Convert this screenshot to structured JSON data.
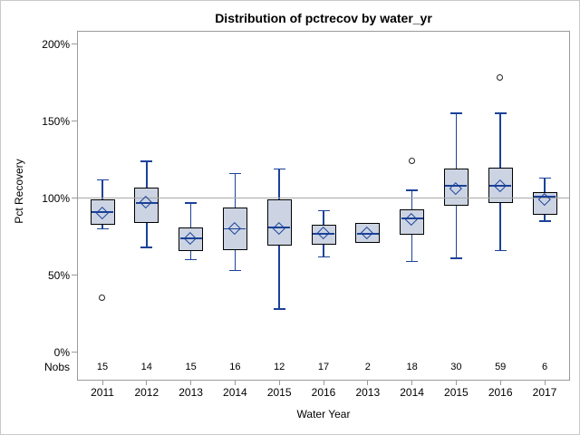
{
  "window": {
    "background": "#ffffff",
    "border_color": "#c9c9c9"
  },
  "chart_data": {
    "type": "boxplot",
    "title": "Distribution of pctrecov by water_yr",
    "xlabel": "Water Year",
    "ylabel": "Pct Recovery",
    "ylim": [
      0,
      200
    ],
    "yticks": [
      0,
      50,
      100,
      150,
      200
    ],
    "ytick_suffix": "%",
    "refline": 100,
    "grid": "refline-only",
    "legend_position": "none",
    "nobs_row_label": "Nobs",
    "boxes": [
      {
        "category": "2011",
        "nobs": 15,
        "whisker_low": 80,
        "q1": 83,
        "median": 91,
        "mean": 90,
        "q3": 99,
        "whisker_high": 112,
        "outliers": [
          35
        ]
      },
      {
        "category": "2012",
        "nobs": 14,
        "whisker_low": 68,
        "q1": 84,
        "median": 97,
        "mean": 97,
        "q3": 107,
        "whisker_high": 124,
        "outliers": []
      },
      {
        "category": "2013",
        "nobs": 15,
        "whisker_low": 60,
        "q1": 66,
        "median": 74,
        "mean": 74,
        "q3": 81,
        "whisker_high": 97,
        "outliers": []
      },
      {
        "category": "2014",
        "nobs": 16,
        "whisker_low": 53,
        "q1": 66,
        "median": 80,
        "mean": 80,
        "q3": 94,
        "whisker_high": 116,
        "outliers": []
      },
      {
        "category": "2015",
        "nobs": 12,
        "whisker_low": 28,
        "q1": 69,
        "median": 81,
        "mean": 80,
        "q3": 99,
        "whisker_high": 119,
        "outliers": []
      },
      {
        "category": "2016",
        "nobs": 17,
        "whisker_low": 62,
        "q1": 70,
        "median": 77,
        "mean": 77,
        "q3": 83,
        "whisker_high": 92,
        "outliers": []
      },
      {
        "category": "2013",
        "nobs": 2,
        "whisker_low": 71,
        "q1": 71,
        "median": 77,
        "mean": 77,
        "q3": 84,
        "whisker_high": 84,
        "outliers": []
      },
      {
        "category": "2014",
        "nobs": 18,
        "whisker_low": 59,
        "q1": 76,
        "median": 87,
        "mean": 86,
        "q3": 93,
        "whisker_high": 105,
        "outliers": [
          124
        ]
      },
      {
        "category": "2015",
        "nobs": 30,
        "whisker_low": 61,
        "q1": 95,
        "median": 108,
        "mean": 106,
        "q3": 119,
        "whisker_high": 155,
        "outliers": []
      },
      {
        "category": "2016",
        "nobs": 59,
        "whisker_low": 66,
        "q1": 97,
        "median": 108,
        "mean": 108,
        "q3": 120,
        "whisker_high": 155,
        "outliers": [
          178
        ]
      },
      {
        "category": "2017",
        "nobs": 6,
        "whisker_low": 85,
        "q1": 89,
        "median": 101,
        "mean": 99,
        "q3": 104,
        "whisker_high": 113,
        "outliers": []
      }
    ],
    "colors": {
      "box_fill": "#ccd4e3",
      "box_border": "#000000",
      "whisker": "#1b4298",
      "mean_marker": "#1b4298",
      "median": "#1b4298",
      "outlier": "#222222",
      "refline": "#a8a8a8",
      "axis": "#9b9b9b",
      "text": "#000000"
    }
  }
}
